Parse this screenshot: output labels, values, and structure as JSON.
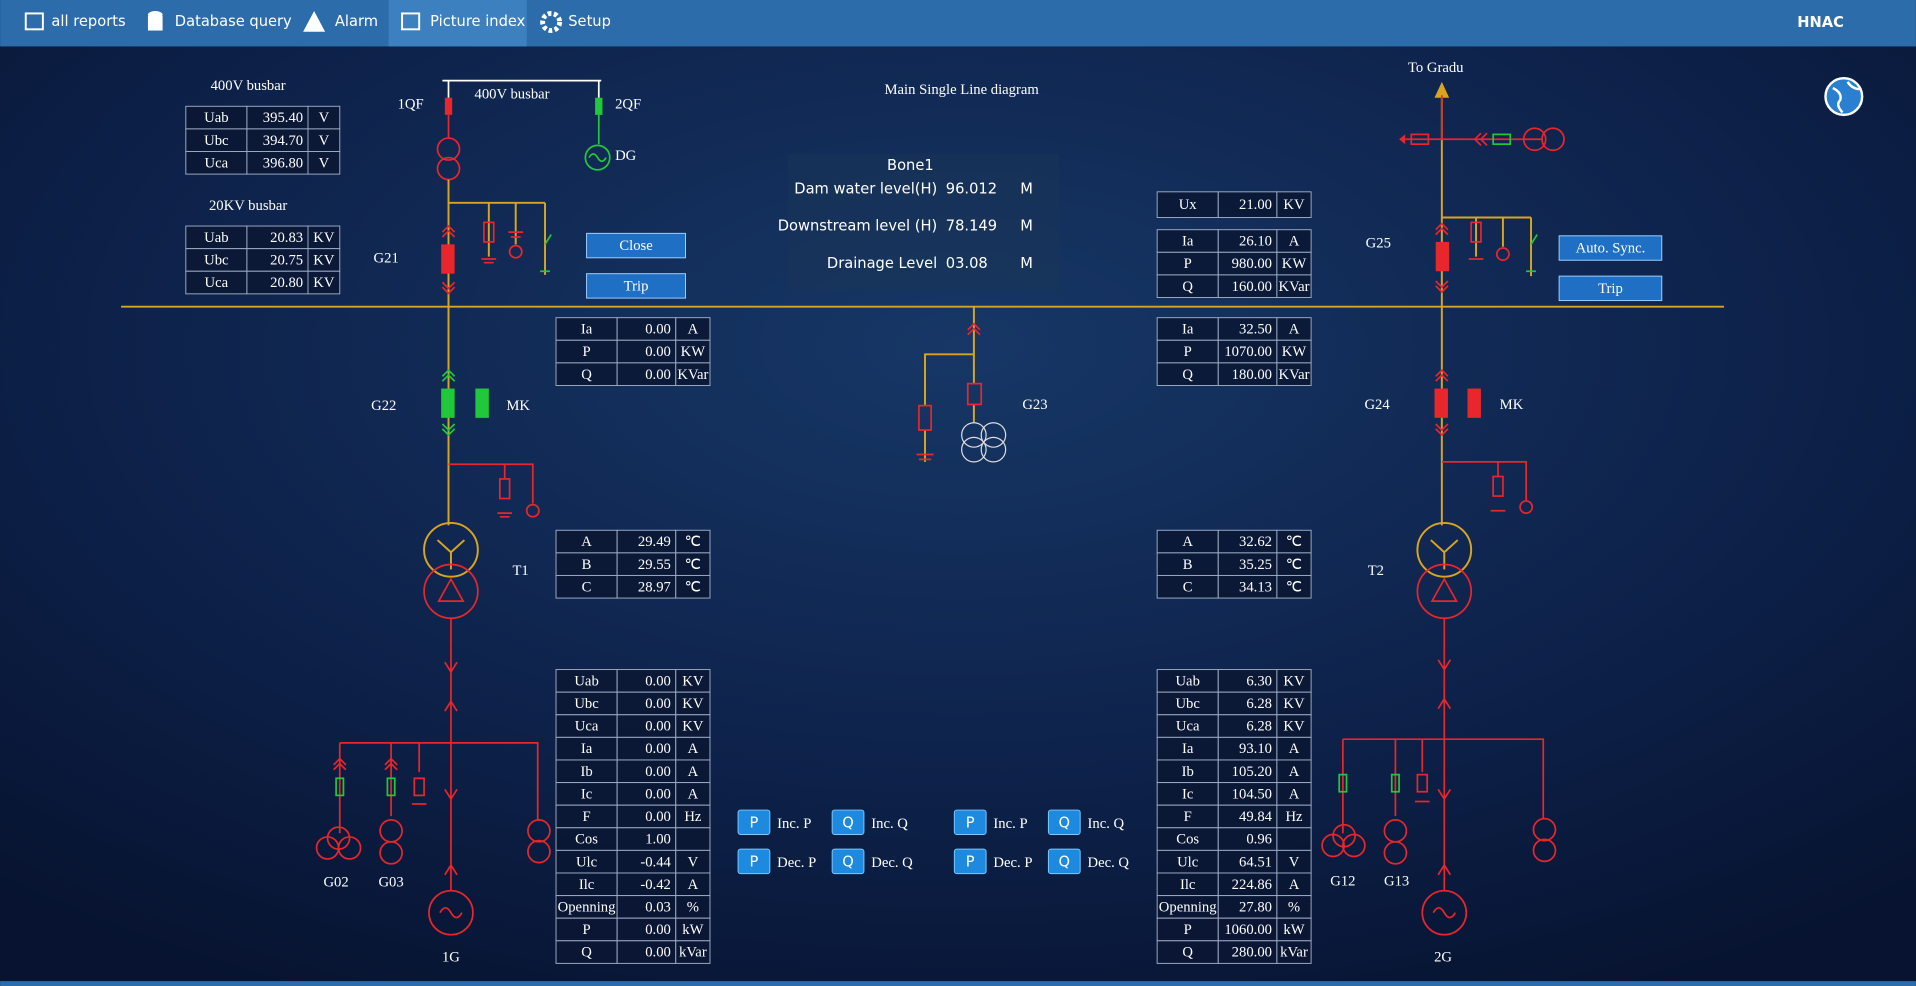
{
  "nav": [
    "all reports",
    "Database query",
    "Alarm",
    "Picture index",
    "Setup"
  ],
  "logo": "HNAC",
  "title": "Main Single Line diagram",
  "info_panel": {
    "title": "Bone1",
    "rows": [
      [
        "Dam water level(H)",
        "96.012",
        "M"
      ],
      [
        "Downstream  level (H)",
        "78.149",
        "M"
      ],
      [
        "Drainage Level",
        "03.08",
        "M"
      ]
    ]
  },
  "tables": [
    {
      "caption": "400V busbar",
      "rows": [
        [
          "Uab",
          "395.40",
          "V"
        ],
        [
          "Ubc",
          "394.70",
          "V"
        ],
        [
          "Uca",
          "396.80",
          "V"
        ]
      ]
    },
    {
      "caption": "20KV busbar",
      "rows": [
        [
          "Uab",
          "20.83",
          "KV"
        ],
        [
          "Ubc",
          "20.75",
          "KV"
        ],
        [
          "Uca",
          "20.80",
          "KV"
        ]
      ]
    },
    {
      "rows": [
        [
          "Ia",
          "0.00",
          "A"
        ],
        [
          "P",
          "0.00",
          "KW"
        ],
        [
          "Q",
          "0.00",
          "KVar"
        ]
      ]
    },
    {
      "rows": [
        [
          "A",
          "29.49",
          "℃"
        ],
        [
          "B",
          "29.55",
          "℃"
        ],
        [
          "C",
          "28.97",
          "℃"
        ]
      ]
    },
    {
      "rows": [
        [
          "Uab",
          "0.00",
          "KV"
        ],
        [
          "Ubc",
          "0.00",
          "KV"
        ],
        [
          "Uca",
          "0.00",
          "KV"
        ],
        [
          "Ia",
          "0.00",
          "A"
        ],
        [
          "Ib",
          "0.00",
          "A"
        ],
        [
          "Ic",
          "0.00",
          "A"
        ],
        [
          "F",
          "0.00",
          "Hz"
        ],
        [
          "Cos",
          "1.00"
        ],
        [
          "Ulc",
          "-0.44",
          "V"
        ],
        [
          "Ilc",
          "-0.42",
          "A"
        ],
        [
          "Openning",
          "0.03",
          "%"
        ],
        [
          "P",
          "0.00",
          "kW"
        ],
        [
          "Q",
          "0.00",
          "kVar"
        ]
      ]
    },
    {
      "rows": [
        [
          "Ux",
          "21.00",
          "KV"
        ]
      ]
    },
    {
      "rows": [
        [
          "Ia",
          "26.10",
          "A"
        ],
        [
          "P",
          "980.00",
          "KW"
        ],
        [
          "Q",
          "160.00",
          "KVar"
        ]
      ]
    },
    {
      "rows": [
        [
          "Ia",
          "32.50",
          "A"
        ],
        [
          "P",
          "1070.00",
          "KW"
        ],
        [
          "Q",
          "180.00",
          "KVar"
        ]
      ]
    },
    {
      "rows": [
        [
          "A",
          "32.62",
          "℃"
        ],
        [
          "B",
          "35.25",
          "℃"
        ],
        [
          "C",
          "34.13",
          "℃"
        ]
      ]
    },
    {
      "rows": [
        [
          "Uab",
          "6.30",
          "KV"
        ],
        [
          "Ubc",
          "6.28",
          "KV"
        ],
        [
          "Uca",
          "6.28",
          "KV"
        ],
        [
          "Ia",
          "93.10",
          "A"
        ],
        [
          "Ib",
          "105.20",
          "A"
        ],
        [
          "Ic",
          "104.50",
          "A"
        ],
        [
          "F",
          "49.84",
          "Hz"
        ],
        [
          "Cos",
          "0.96"
        ],
        [
          "Ulc",
          "64.51",
          "V"
        ],
        [
          "Ilc",
          "224.86",
          "A"
        ],
        [
          "Openning",
          "27.80",
          "%"
        ],
        [
          "P",
          "1060.00",
          "kW"
        ],
        [
          "Q",
          "280.00",
          "kVar"
        ]
      ]
    }
  ],
  "labels": [
    "1QF",
    "400V busbar",
    "2QF",
    "DG",
    "G21",
    "G22",
    "MK",
    "T1",
    "G02",
    "G03",
    "1G",
    "G23",
    "To Gradu",
    "G25",
    "G24",
    "MK",
    "T2",
    "G12",
    "G13",
    "2G"
  ],
  "buttons": [
    "Close",
    "Trip",
    "Auto. Sync.",
    "Trip"
  ],
  "control_panels": [
    [
      {
        "icon": "P",
        "label": "Inc. P"
      },
      {
        "icon": "Q",
        "label": "Inc. Q"
      },
      {
        "icon": "P",
        "label": "Dec. P"
      },
      {
        "icon": "Q",
        "label": "Dec. Q"
      }
    ],
    [
      {
        "icon": "P",
        "label": "Inc. P"
      },
      {
        "icon": "Q",
        "label": "Inc. Q"
      },
      {
        "icon": "P",
        "label": "Dec. P"
      },
      {
        "icon": "Q",
        "label": "Dec. Q"
      }
    ]
  ]
}
